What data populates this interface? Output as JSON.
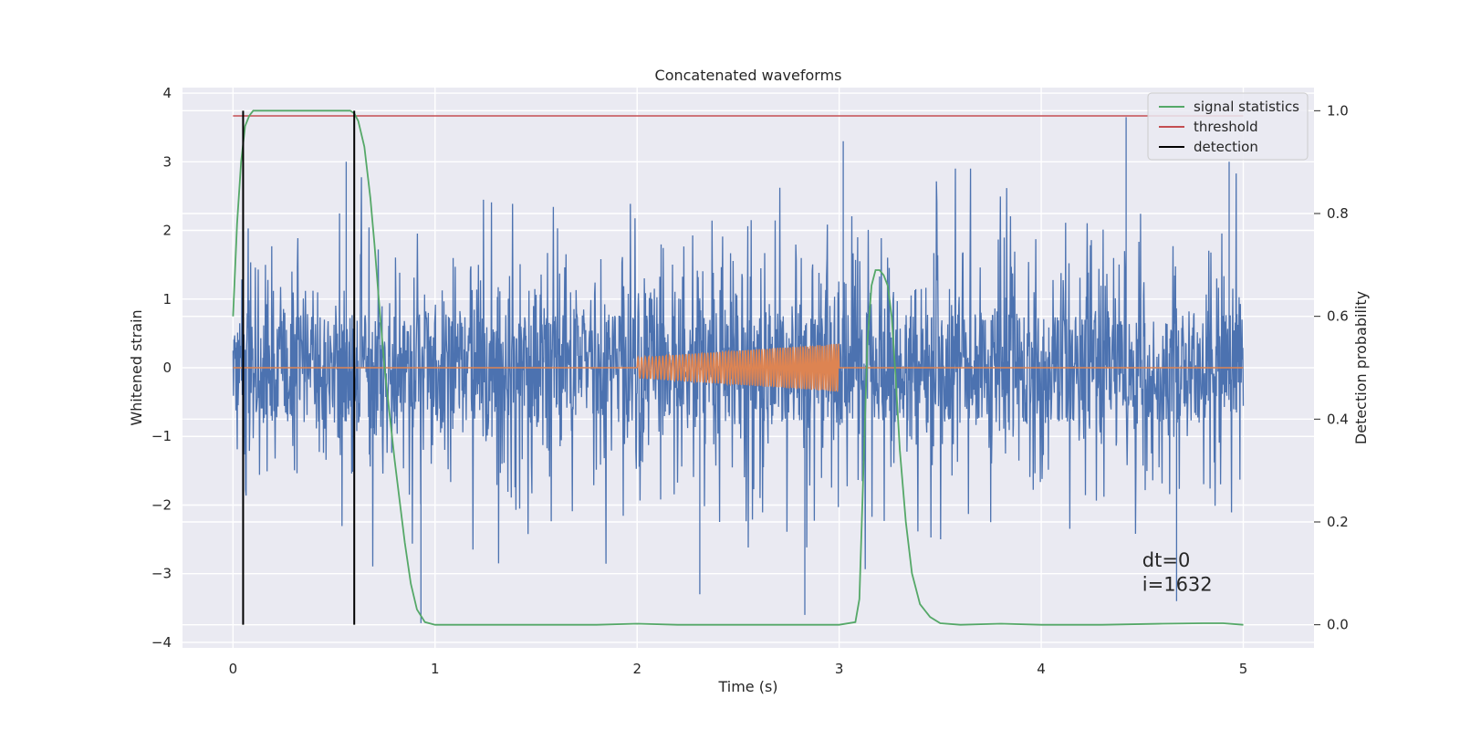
{
  "chart_data": {
    "type": "line",
    "title": "Concatenated waveforms",
    "xlabel": "Time (s)",
    "ylabel": "Whitened strain",
    "y2label": "Detection probability",
    "xlim": [
      -0.25,
      5.35
    ],
    "ylim": [
      -4.08,
      4.08
    ],
    "y2lim": [
      -0.045,
      1.045
    ],
    "xticks": [
      0,
      1,
      2,
      3,
      4,
      5
    ],
    "xtick_labels": [
      "0",
      "1",
      "2",
      "3",
      "4",
      "5"
    ],
    "yticks": [
      -4,
      -3,
      -2,
      -1,
      0,
      1,
      2,
      3,
      4
    ],
    "ytick_labels": [
      "−4",
      "−3",
      "−2",
      "−1",
      "0",
      "1",
      "2",
      "3",
      "4"
    ],
    "y2ticks": [
      0.0,
      0.2,
      0.4,
      0.6,
      0.8,
      1.0
    ],
    "y2tick_labels": [
      "0.0",
      "0.2",
      "0.4",
      "0.6",
      "0.8",
      "1.0"
    ],
    "grid": true,
    "legend_position": "top-right",
    "colors": {
      "background": "#eaeaf2",
      "grid": "#ffffff",
      "strain": "#4c72b0",
      "injection": "#dd8452",
      "signal_statistics": "#55a868",
      "threshold": "#c44e52",
      "detection": "#000000"
    },
    "series": [
      {
        "key": "whitened_strain",
        "axis": "left",
        "description_values": "noise-dominated whitened strain sampled over 0–5 s",
        "x_range": [
          0,
          5
        ],
        "approx_core_amplitude": 0.8,
        "max_peaks": [
          {
            "x": 4.42,
            "y": 3.65
          },
          {
            "x": 3.02,
            "y": 3.3
          },
          {
            "x": 4.93,
            "y": 3.0
          },
          {
            "x": 0.56,
            "y": 3.0
          },
          {
            "x": 0.93,
            "y": -3.72
          },
          {
            "x": 2.83,
            "y": -3.6
          },
          {
            "x": 4.67,
            "y": -3.4
          },
          {
            "x": 2.31,
            "y": -3.3
          }
        ]
      },
      {
        "key": "injected_signal",
        "axis": "left",
        "x": [
          0,
          2,
          3,
          5
        ],
        "y_envelope": [
          0,
          0.15,
          0.35,
          0
        ],
        "chirp_start": 2.0,
        "chirp_end": 3.0
      },
      {
        "name": "signal statistics",
        "key": "signal_statistics",
        "axis": "right",
        "x": [
          0.0,
          0.02,
          0.04,
          0.06,
          0.08,
          0.1,
          0.15,
          0.3,
          0.5,
          0.58,
          0.6,
          0.62,
          0.65,
          0.68,
          0.7,
          0.72,
          0.75,
          0.8,
          0.85,
          0.88,
          0.91,
          0.95,
          1.0,
          1.2,
          1.5,
          1.8,
          2.0,
          2.2,
          2.5,
          2.8,
          3.0,
          3.08,
          3.1,
          3.12,
          3.14,
          3.16,
          3.18,
          3.2,
          3.22,
          3.24,
          3.26,
          3.28,
          3.3,
          3.33,
          3.36,
          3.4,
          3.45,
          3.5,
          3.6,
          3.8,
          4.0,
          4.3,
          4.6,
          4.8,
          4.9,
          5.0
        ],
        "values": [
          0.6,
          0.78,
          0.9,
          0.97,
          0.99,
          1.0,
          1.0,
          1.0,
          1.0,
          1.0,
          0.995,
          0.98,
          0.93,
          0.83,
          0.74,
          0.64,
          0.5,
          0.32,
          0.16,
          0.08,
          0.03,
          0.005,
          0.0,
          0.0,
          0.0,
          0.0,
          0.002,
          0.0,
          0.0,
          0.0,
          0.0,
          0.005,
          0.05,
          0.3,
          0.55,
          0.66,
          0.69,
          0.69,
          0.68,
          0.66,
          0.6,
          0.48,
          0.34,
          0.2,
          0.1,
          0.04,
          0.015,
          0.003,
          0.0,
          0.002,
          0.0,
          0.0,
          0.002,
          0.003,
          0.003,
          0.0
        ]
      },
      {
        "name": "threshold",
        "key": "threshold",
        "axis": "right",
        "x": [
          0,
          5
        ],
        "values": [
          0.99,
          0.99
        ]
      },
      {
        "name": "detection",
        "key": "detection",
        "axis": "right",
        "x_positions": [
          0.05,
          0.6
        ],
        "y_span": [
          0.0,
          1.0
        ]
      }
    ],
    "annotations": [
      {
        "key": "dt",
        "text": "dt=0",
        "x": 4.5,
        "y": -2.9
      },
      {
        "key": "i",
        "text": "i=1632",
        "x": 4.5,
        "y": -3.25
      }
    ]
  }
}
